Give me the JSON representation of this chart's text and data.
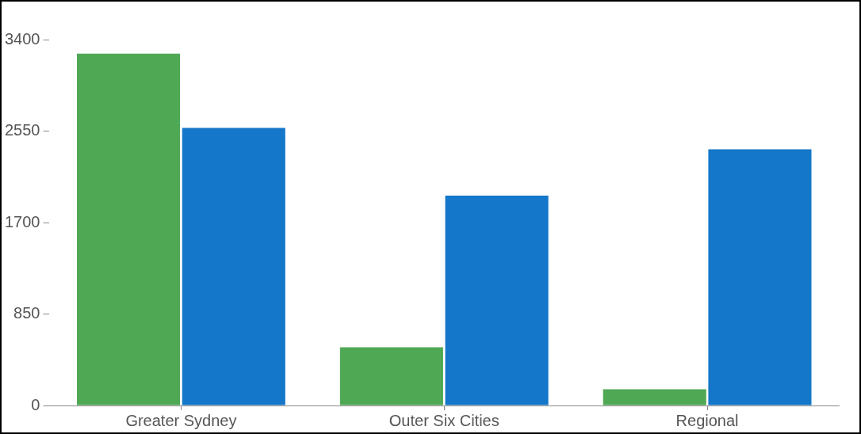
{
  "chart_data": {
    "type": "bar",
    "categories": [
      "Greater Sydney",
      "Outer Six Cities",
      "Regional"
    ],
    "series": [
      {
        "color": "#4fa854",
        "values": [
          3270,
          540,
          150
        ]
      },
      {
        "color": "#1577c9",
        "values": [
          2580,
          1950,
          2380
        ]
      }
    ],
    "ylim": [
      0,
      3400
    ],
    "yticks": [
      0,
      850,
      1700,
      2550,
      3400
    ],
    "grid": false,
    "legend": false
  }
}
